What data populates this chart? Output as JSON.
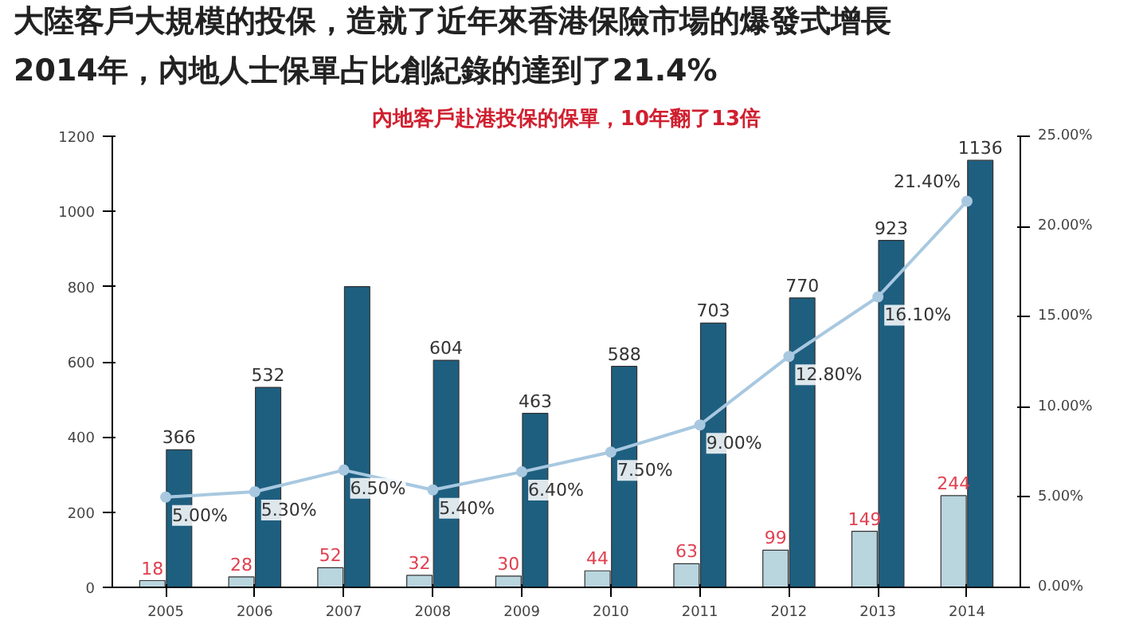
{
  "chart_data": {
    "type": "bar",
    "title": "大陸客戶大規模的投保，造就了近年來香港保險市場的爆發式增長",
    "subtitle": "2014年，內地人士保單占比創紀錄的達到了21.4%",
    "annotations": [
      "內地客戶赴港投保的保單，10年翻了13倍"
    ],
    "categories": [
      "2005",
      "2006",
      "2007",
      "2008",
      "2009",
      "2010",
      "2011",
      "2012",
      "2013",
      "2014"
    ],
    "series": [
      {
        "color": "#b9d5de",
        "values": [
          18,
          28,
          52,
          32,
          30,
          44,
          63,
          99,
          149,
          244
        ],
        "value_labels": [
          "18",
          "28",
          "52",
          "32",
          "30",
          "44",
          "63",
          "99",
          "149",
          "244"
        ]
      },
      {
        "color": "#1e5f80",
        "values": [
          366,
          532,
          800,
          604,
          463,
          588,
          703,
          770,
          923,
          1136
        ],
        "value_labels": [
          "366",
          "532",
          null,
          "604",
          "463",
          "588",
          "703",
          "770",
          "923",
          "1136"
        ]
      },
      {
        "type": "line",
        "axis": "y2",
        "color": "#a8c8e0",
        "marker": "circle",
        "values": [
          5.0,
          5.3,
          6.5,
          5.4,
          6.4,
          7.5,
          9.0,
          12.8,
          16.1,
          21.4
        ],
        "value_labels": [
          "5.00%",
          "5.30%",
          "6.50%",
          "5.40%",
          "6.40%",
          "7.50%",
          "9.00%",
          "12.80%",
          "16.10%",
          "21.40%"
        ]
      }
    ],
    "ylim": [
      0,
      1200
    ],
    "yticks": [
      0,
      200,
      400,
      600,
      800,
      1000,
      1200
    ],
    "y2lim": [
      0,
      25
    ],
    "y2ticks": [
      {
        "value": 0,
        "label": "0.00%"
      },
      {
        "value": 5,
        "label": "5.00%"
      },
      {
        "value": 10,
        "label": "10.00%"
      },
      {
        "value": 15,
        "label": "15.00%"
      },
      {
        "value": 20,
        "label": "20.00%"
      },
      {
        "value": 25,
        "label": "25.00%"
      }
    ]
  }
}
